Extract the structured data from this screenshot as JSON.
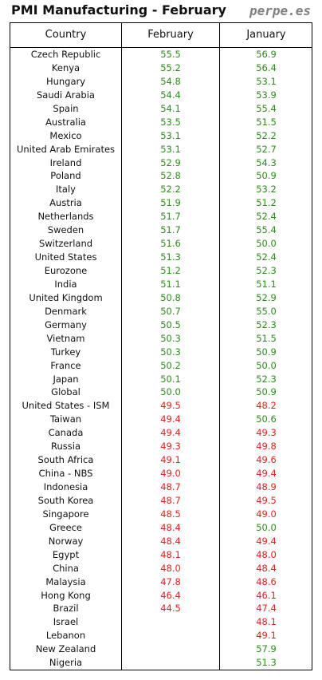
{
  "title": "PMI Manufacturing - February",
  "brand": "perpe.es",
  "columns": [
    "Country",
    "February",
    "January"
  ],
  "colors": {
    "expansion": "#2e8b1e",
    "contraction": "#e0221f"
  },
  "rows": [
    {
      "country": "Czech Republic",
      "feb": "55.5",
      "jan": "56.9"
    },
    {
      "country": "Kenya",
      "feb": "55.2",
      "jan": "56.4"
    },
    {
      "country": "Hungary",
      "feb": "54.8",
      "jan": "53.1"
    },
    {
      "country": "Saudi Arabia",
      "feb": "54.4",
      "jan": "53.9"
    },
    {
      "country": "Spain",
      "feb": "54.1",
      "jan": "55.4"
    },
    {
      "country": "Australia",
      "feb": "53.5",
      "jan": "51.5"
    },
    {
      "country": "Mexico",
      "feb": "53.1",
      "jan": "52.2"
    },
    {
      "country": "United Arab Emirates",
      "feb": "53.1",
      "jan": "52.7"
    },
    {
      "country": "Ireland",
      "feb": "52.9",
      "jan": "54.3"
    },
    {
      "country": "Poland",
      "feb": "52.8",
      "jan": "50.9"
    },
    {
      "country": "Italy",
      "feb": "52.2",
      "jan": "53.2"
    },
    {
      "country": "Austria",
      "feb": "51.9",
      "jan": "51.2"
    },
    {
      "country": "Netherlands",
      "feb": "51.7",
      "jan": "52.4"
    },
    {
      "country": "Sweden",
      "feb": "51.7",
      "jan": "55.4"
    },
    {
      "country": "Switzerland",
      "feb": "51.6",
      "jan": "50.0"
    },
    {
      "country": "United States",
      "feb": "51.3",
      "jan": "52.4"
    },
    {
      "country": "Eurozone",
      "feb": "51.2",
      "jan": "52.3"
    },
    {
      "country": "India",
      "feb": "51.1",
      "jan": "51.1"
    },
    {
      "country": "United Kingdom",
      "feb": "50.8",
      "jan": "52.9"
    },
    {
      "country": "Denmark",
      "feb": "50.7",
      "jan": "55.0"
    },
    {
      "country": "Germany",
      "feb": "50.5",
      "jan": "52.3"
    },
    {
      "country": "Vietnam",
      "feb": "50.3",
      "jan": "51.5"
    },
    {
      "country": "Turkey",
      "feb": "50.3",
      "jan": "50.9"
    },
    {
      "country": "France",
      "feb": "50.2",
      "jan": "50.0"
    },
    {
      "country": "Japan",
      "feb": "50.1",
      "jan": "52.3"
    },
    {
      "country": "Global",
      "feb": "50.0",
      "jan": "50.9"
    },
    {
      "country": "United States - ISM",
      "feb": "49.5",
      "jan": "48.2"
    },
    {
      "country": "Taiwan",
      "feb": "49.4",
      "jan": "50.6"
    },
    {
      "country": "Canada",
      "feb": "49.4",
      "jan": "49.3"
    },
    {
      "country": "Russia",
      "feb": "49.3",
      "jan": "49.8"
    },
    {
      "country": "South Africa",
      "feb": "49.1",
      "jan": "49.6"
    },
    {
      "country": "China - NBS",
      "feb": "49.0",
      "jan": "49.4"
    },
    {
      "country": "Indonesia",
      "feb": "48.7",
      "jan": "48.9"
    },
    {
      "country": "South Korea",
      "feb": "48.7",
      "jan": "49.5"
    },
    {
      "country": "Singapore",
      "feb": "48.5",
      "jan": "49.0"
    },
    {
      "country": "Greece",
      "feb": "48.4",
      "jan": "50.0"
    },
    {
      "country": "Norway",
      "feb": "48.4",
      "jan": "49.4"
    },
    {
      "country": "Egypt",
      "feb": "48.1",
      "jan": "48.0"
    },
    {
      "country": "China",
      "feb": "48.0",
      "jan": "48.4"
    },
    {
      "country": "Malaysia",
      "feb": "47.8",
      "jan": "48.6"
    },
    {
      "country": "Hong Kong",
      "feb": "46.4",
      "jan": "46.1"
    },
    {
      "country": "Brazil",
      "feb": "44.5",
      "jan": "47.4"
    },
    {
      "country": "Israel",
      "feb": "",
      "jan": "48.1"
    },
    {
      "country": "Lebanon",
      "feb": "",
      "jan": "49.1"
    },
    {
      "country": "New Zealand",
      "feb": "",
      "jan": "57.9"
    },
    {
      "country": "Nigeria",
      "feb": "",
      "jan": "51.3"
    }
  ]
}
